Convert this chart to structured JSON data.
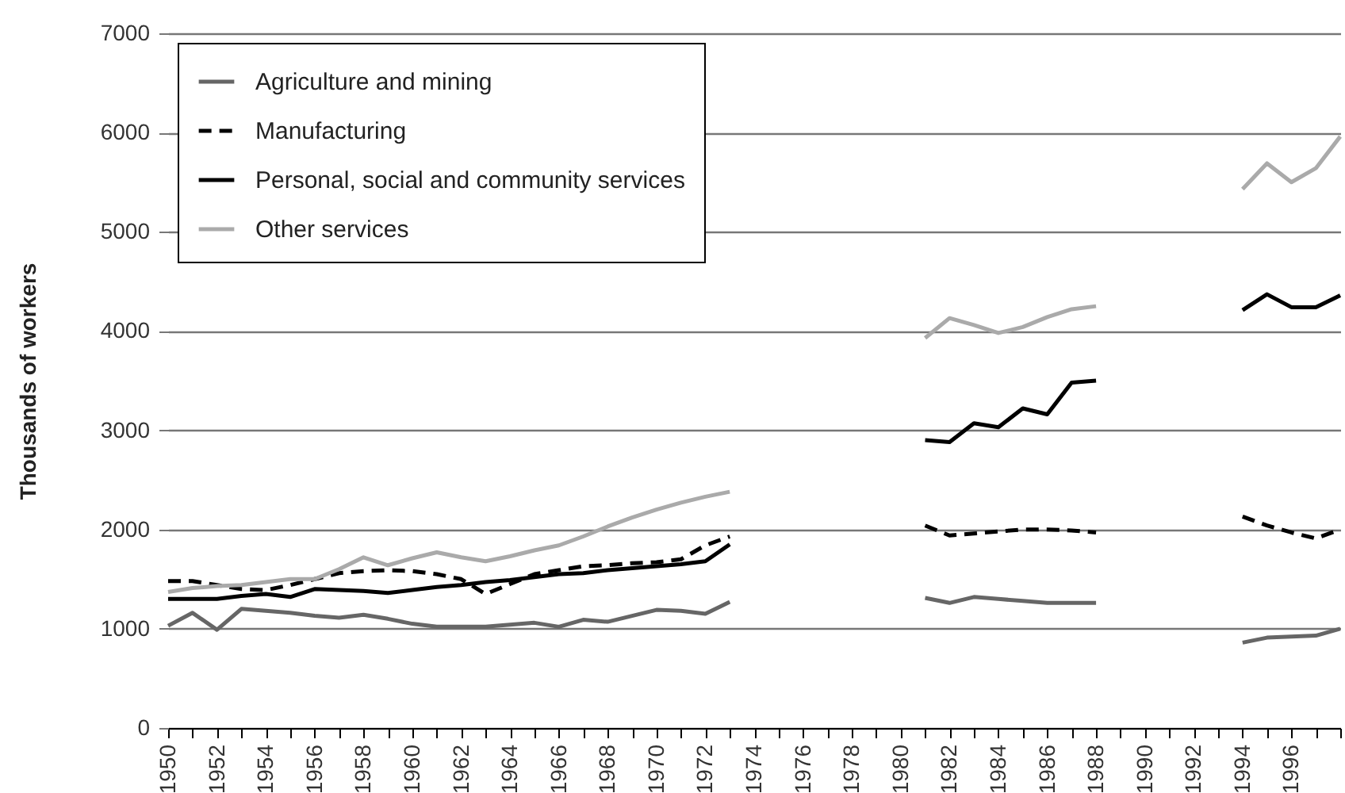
{
  "chart_data": {
    "type": "line",
    "ylabel": "Thousands of workers",
    "x": [
      1950,
      1951,
      1952,
      1953,
      1954,
      1955,
      1956,
      1957,
      1958,
      1959,
      1960,
      1961,
      1962,
      1963,
      1964,
      1965,
      1966,
      1967,
      1968,
      1969,
      1970,
      1971,
      1972,
      1973,
      1974,
      1975,
      1976,
      1977,
      1978,
      1979,
      1980,
      1981,
      1982,
      1983,
      1984,
      1985,
      1986,
      1987,
      1988,
      1989,
      1990,
      1991,
      1992,
      1993,
      1994,
      1995,
      1996,
      1997,
      1998
    ],
    "series": [
      {
        "name": "Agriculture and mining",
        "color": "#666666",
        "line_style": "solid",
        "values": [
          1030,
          1160,
          990,
          1200,
          1180,
          1160,
          1130,
          1110,
          1140,
          1100,
          1050,
          1020,
          1020,
          1020,
          1040,
          1060,
          1020,
          1090,
          1070,
          1130,
          1190,
          1180,
          1150,
          1270,
          null,
          null,
          null,
          null,
          null,
          null,
          null,
          1310,
          1260,
          1320,
          1300,
          1280,
          1260,
          1260,
          1260,
          null,
          null,
          null,
          null,
          null,
          860,
          910,
          920,
          930,
          1000
        ]
      },
      {
        "name": "Manufacturing",
        "color": "#000000",
        "line_style": "dashed",
        "values": [
          1480,
          1480,
          1440,
          1400,
          1390,
          1440,
          1500,
          1560,
          1580,
          1590,
          1580,
          1550,
          1500,
          1350,
          1450,
          1550,
          1590,
          1630,
          1640,
          1660,
          1670,
          1700,
          1840,
          1930,
          null,
          null,
          null,
          null,
          null,
          null,
          null,
          2040,
          1940,
          1960,
          1980,
          2000,
          2000,
          1990,
          1970,
          null,
          null,
          null,
          null,
          null,
          2130,
          2040,
          1970,
          1910,
          2000
        ]
      },
      {
        "name": "Personal, social and community services",
        "color": "#000000",
        "line_style": "solid",
        "values": [
          1300,
          1300,
          1300,
          1330,
          1350,
          1320,
          1400,
          1390,
          1380,
          1360,
          1390,
          1420,
          1440,
          1470,
          1490,
          1520,
          1550,
          1560,
          1590,
          1610,
          1630,
          1650,
          1680,
          1850,
          null,
          null,
          null,
          null,
          null,
          null,
          null,
          2900,
          2880,
          3070,
          3030,
          3220,
          3160,
          3480,
          3500,
          null,
          null,
          null,
          null,
          null,
          4210,
          4370,
          4240,
          4240,
          4360
        ]
      },
      {
        "name": "Other services",
        "color": "#aaaaaa",
        "line_style": "solid",
        "values": [
          1370,
          1410,
          1430,
          1440,
          1470,
          1500,
          1500,
          1600,
          1720,
          1640,
          1710,
          1770,
          1720,
          1680,
          1730,
          1790,
          1840,
          1930,
          2030,
          2120,
          2200,
          2270,
          2330,
          2380,
          null,
          null,
          null,
          null,
          null,
          null,
          null,
          3930,
          4130,
          4060,
          3980,
          4040,
          4140,
          4220,
          4250,
          null,
          null,
          null,
          null,
          null,
          5430,
          5690,
          5500,
          5640,
          5960
        ]
      }
    ],
    "xlim": [
      1950,
      1998
    ],
    "xticks": [
      1950,
      {
        "value": 1951,
        "label": null
      },
      1952,
      {
        "value": 1953,
        "label": null
      },
      1954,
      {
        "value": 1955,
        "label": null
      },
      1956,
      {
        "value": 1957,
        "label": null
      },
      1958,
      {
        "value": 1959,
        "label": null
      },
      1960,
      {
        "value": 1961,
        "label": null
      },
      1962,
      {
        "value": 1963,
        "label": null
      },
      1964,
      {
        "value": 1965,
        "label": null
      },
      1966,
      {
        "value": 1967,
        "label": null
      },
      1968,
      {
        "value": 1969,
        "label": null
      },
      1970,
      {
        "value": 1971,
        "label": null
      },
      1972,
      {
        "value": 1973,
        "label": null
      },
      1974,
      {
        "value": 1975,
        "label": null
      },
      1976,
      {
        "value": 1977,
        "label": null
      },
      1978,
      {
        "value": 1979,
        "label": null
      },
      1980,
      {
        "value": 1981,
        "label": null
      },
      1982,
      {
        "value": 1983,
        "label": null
      },
      1984,
      {
        "value": 1985,
        "label": null
      },
      1986,
      {
        "value": 1987,
        "label": null
      },
      1988,
      {
        "value": 1989,
        "label": null
      },
      1990,
      {
        "value": 1991,
        "label": null
      },
      1992,
      {
        "value": 1993,
        "label": null
      },
      1994,
      {
        "value": 1995,
        "label": null
      },
      1996,
      {
        "value": 1997,
        "label": null
      },
      {
        "value": 1998,
        "label": null
      }
    ],
    "ylim": [
      0,
      7000
    ],
    "yticks": [
      0,
      1000,
      2000,
      3000,
      4000,
      5000,
      6000,
      7000
    ],
    "grid": "y",
    "legend": "top left",
    "marker": "none"
  }
}
